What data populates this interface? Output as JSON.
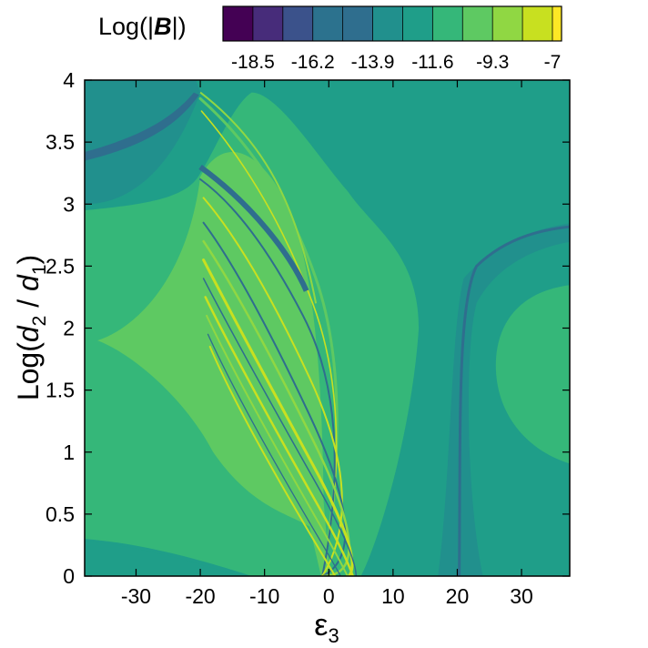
{
  "chart_data": {
    "type": "heatmap",
    "title": "",
    "xlabel": "ε3",
    "ylabel": "Log(d2 / d1)",
    "x_ticks": [
      -30,
      -20,
      -10,
      0,
      10,
      20,
      30
    ],
    "y_ticks": [
      0,
      0.5,
      1,
      1.5,
      2,
      2.5,
      3,
      3.5,
      4
    ],
    "xlim": [
      -38,
      37.5
    ],
    "ylim": [
      0,
      4
    ],
    "grid": false,
    "colorbar": {
      "title": "Log(|B|)",
      "placement": "top",
      "tick_labels": [
        "-18.5",
        "-16.2",
        "-13.9",
        "-11.6",
        "-9.3",
        "-7"
      ],
      "tick_values": [
        -18.5,
        -16.2,
        -13.9,
        -11.6,
        -9.3,
        -7
      ],
      "range": [
        -19.65,
        -6.65
      ],
      "levels": [
        {
          "min": -19.65,
          "max": -18.5,
          "color": "#440154"
        },
        {
          "min": -18.5,
          "max": -17.35,
          "color": "#472c7a"
        },
        {
          "min": -17.35,
          "max": -16.2,
          "color": "#3b528b"
        },
        {
          "min": -16.2,
          "max": -15.05,
          "color": "#2c728e"
        },
        {
          "min": -15.05,
          "max": -13.9,
          "color": "#2f6e8e"
        },
        {
          "min": -13.9,
          "max": -12.75,
          "color": "#21908d"
        },
        {
          "min": -12.75,
          "max": -11.6,
          "color": "#1f9e89"
        },
        {
          "min": -11.6,
          "max": -10.45,
          "color": "#35b779"
        },
        {
          "min": -10.45,
          "max": -9.3,
          "color": "#5ec962"
        },
        {
          "min": -9.3,
          "max": -8.15,
          "color": "#90d743"
        },
        {
          "min": -8.15,
          "max": -7.0,
          "color": "#c8e020"
        },
        {
          "min": -7.0,
          "max": -6.65,
          "color": "#fde725"
        }
      ]
    }
  }
}
